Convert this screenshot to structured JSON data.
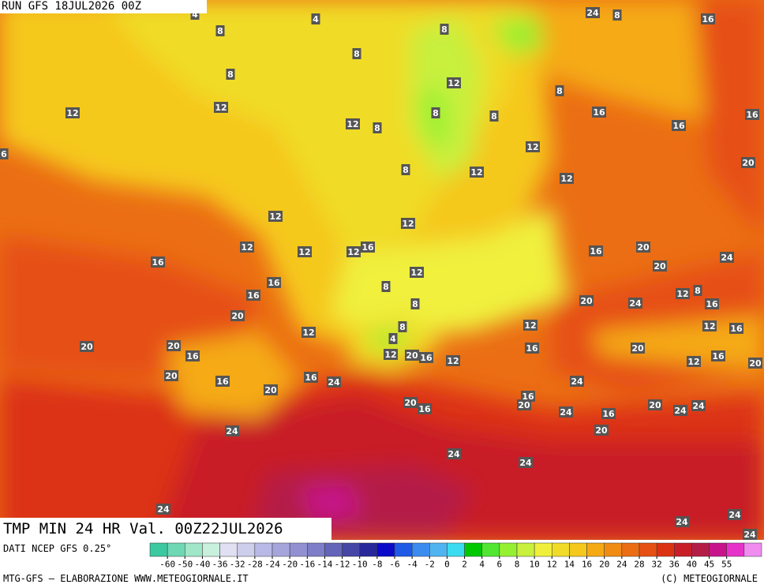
{
  "header": {
    "run": "RUN GFS 18JUL2026 00Z",
    "title": "TMP MIN 24 HR Val. 00Z22JUL2026"
  },
  "footer": {
    "source": "DATI NCEP GFS 0.25°",
    "credit_left": "MTG-GFS — ELABORAZIONE WWW.METEOGIORNALE.IT",
    "credit_right": "(C) METEOGIORNALE"
  },
  "map_labels": [
    4,
    8,
    4,
    16,
    8,
    8,
    8,
    8,
    12,
    8,
    12,
    12,
    8,
    8,
    16,
    16,
    12,
    8,
    16,
    12,
    6,
    20,
    8,
    12,
    12,
    12,
    12,
    12,
    16,
    12,
    12,
    16,
    20,
    24,
    16,
    12,
    20,
    16,
    8,
    12,
    8,
    16,
    20,
    24,
    16,
    8,
    20,
    12,
    12,
    12,
    8,
    16,
    4,
    20,
    20,
    16,
    20,
    16,
    12,
    20,
    16,
    12,
    12,
    16,
    20,
    20,
    16,
    24,
    16,
    24,
    20,
    20,
    16,
    20,
    16,
    24,
    16,
    24,
    20,
    24,
    24,
    24,
    20,
    24,
    24,
    24,
    24,
    24,
    24
  ],
  "scale": {
    "colors": [
      "#3cc8a0",
      "#6ed7b4",
      "#a0e6c8",
      "#c8f0dc",
      "#e0e0f2",
      "#cdcdec",
      "#b9b9e6",
      "#a5a5dc",
      "#9191d2",
      "#7d7dc8",
      "#6464b9",
      "#4646a5",
      "#28289b",
      "#0a0ac8",
      "#1e5ae6",
      "#3c8cf0",
      "#50b4f0",
      "#3cdcf0",
      "#00c800",
      "#50e632",
      "#96f032",
      "#c8f03c",
      "#f0f03c",
      "#f0dc28",
      "#f5c81e",
      "#f5aa14",
      "#f08c14",
      "#eb6e14",
      "#e65014",
      "#dc3214",
      "#c81e28",
      "#b41e46",
      "#c8148c",
      "#e632c8",
      "#f08cf0"
    ],
    "ticks": [
      -60,
      -50,
      -40,
      -36,
      -32,
      -28,
      -24,
      -20,
      -16,
      -14,
      -12,
      -10,
      -8,
      -6,
      -4,
      -2,
      0,
      2,
      4,
      6,
      8,
      10,
      12,
      14,
      16,
      20,
      24,
      28,
      32,
      36,
      40,
      45,
      55
    ]
  }
}
